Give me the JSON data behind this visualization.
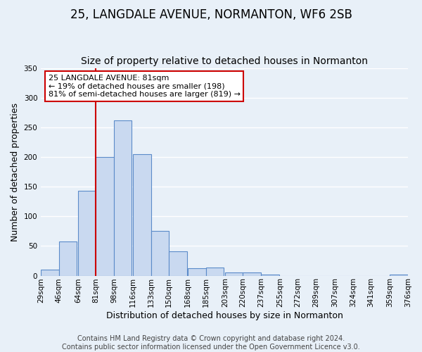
{
  "title": "25, LANGDALE AVENUE, NORMANTON, WF6 2SB",
  "subtitle": "Size of property relative to detached houses in Normanton",
  "xlabel": "Distribution of detached houses by size in Normanton",
  "ylabel": "Number of detached properties",
  "bins": [
    29,
    46,
    64,
    81,
    98,
    116,
    133,
    150,
    168,
    185,
    203,
    220,
    237,
    255,
    272,
    289,
    307,
    324,
    341,
    359,
    376
  ],
  "bar_values": [
    10,
    58,
    143,
    200,
    262,
    205,
    75,
    41,
    13,
    14,
    5,
    5,
    2,
    0,
    0,
    0,
    0,
    0,
    0,
    2
  ],
  "bar_color": "#c9d9f0",
  "bar_edge_color": "#5b8bc9",
  "vline_x": 81,
  "vline_color": "#cc0000",
  "ylim": [
    0,
    350
  ],
  "annotation_title": "25 LANGDALE AVENUE: 81sqm",
  "annotation_line1": "← 19% of detached houses are smaller (198)",
  "annotation_line2": "81% of semi-detached houses are larger (819) →",
  "annotation_box_color": "#ffffff",
  "annotation_box_edge": "#cc0000",
  "footer1": "Contains HM Land Registry data © Crown copyright and database right 2024.",
  "footer2": "Contains public sector information licensed under the Open Government Licence v3.0.",
  "tick_labels": [
    "29sqm",
    "46sqm",
    "64sqm",
    "81sqm",
    "98sqm",
    "116sqm",
    "133sqm",
    "150sqm",
    "168sqm",
    "185sqm",
    "203sqm",
    "220sqm",
    "237sqm",
    "255sqm",
    "272sqm",
    "289sqm",
    "307sqm",
    "324sqm",
    "341sqm",
    "359sqm",
    "376sqm"
  ],
  "background_color": "#e8f0f8",
  "grid_color": "#ffffff",
  "title_fontsize": 12,
  "subtitle_fontsize": 10,
  "axis_label_fontsize": 9,
  "tick_fontsize": 7.5,
  "footer_fontsize": 7,
  "yticks": [
    0,
    50,
    100,
    150,
    200,
    250,
    300,
    350
  ]
}
